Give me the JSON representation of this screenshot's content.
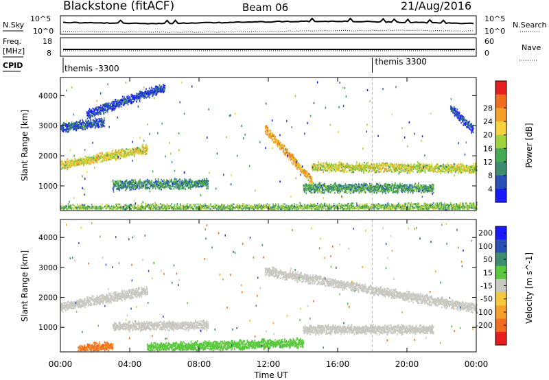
{
  "header": {
    "radar": "Blackstone (fitACF)",
    "beam": "Beam 06",
    "date": "21/Aug/2016"
  },
  "summary_panels": {
    "sky_label": "N.Sky",
    "search_label": "N.Search",
    "noise_ticks": [
      "10^5",
      "10^0"
    ],
    "freq_label_1": "Freq.",
    "freq_label_2": "[MHz]",
    "freq_ticks": [
      "18",
      "8"
    ],
    "nave_label": "Nave",
    "nave_ticks": [
      "60",
      "0"
    ],
    "cpid_label": "CPID",
    "cpid_segments": [
      {
        "label": "themis -3300",
        "start_hour": 0.0
      },
      {
        "label": "themis 3300",
        "start_hour": 18.0
      }
    ]
  },
  "colors": {
    "power_scale": [
      "#1a1aff",
      "#2850b4",
      "#3c8c6e",
      "#46aa50",
      "#a0d23c",
      "#f5d23c",
      "#f5a028",
      "#f06e1e",
      "#e61e1e"
    ],
    "velocity_scale": [
      "#1a1aff",
      "#2850b4",
      "#3c8c6e",
      "#5ac83c",
      "#c8c8c0",
      "#f5c83c",
      "#f5a028",
      "#f06e1e",
      "#e61e1e"
    ],
    "gray": "#c8c8c0"
  },
  "chart_data": [
    {
      "type": "heatmap",
      "panel": "power",
      "xlabel": "",
      "ylabel": "Slant Range [km]",
      "xlim": [
        0,
        24
      ],
      "ylim": [
        180,
        4600
      ],
      "yticks": [
        "1000",
        "2000",
        "3000",
        "4000"
      ],
      "colorbar_label": "Power [dB]",
      "colorbar_ticks": [
        "4",
        "8",
        "12",
        "16",
        "20",
        "24",
        "28"
      ],
      "colorbar_range": [
        0,
        30
      ],
      "bands": [
        {
          "start_hour": 0.0,
          "end_hour": 5.0,
          "range_start_km": 1700,
          "range_end_km": 2250,
          "power_db": 18
        },
        {
          "start_hour": 0.0,
          "end_hour": 2.5,
          "range_start_km": 2950,
          "range_end_km": 3150,
          "power_db": 6
        },
        {
          "start_hour": 1.5,
          "end_hour": 6.0,
          "range_start_km": 3400,
          "range_end_km": 4300,
          "power_db": 5
        },
        {
          "start_hour": 3.0,
          "end_hour": 8.5,
          "range_start_km": 1050,
          "range_end_km": 1100,
          "power_db": 10
        },
        {
          "start_hour": 0.0,
          "end_hour": 24.0,
          "range_start_km": 250,
          "range_end_km": 300,
          "power_db": 14
        },
        {
          "start_hour": 11.8,
          "end_hour": 14.5,
          "range_start_km": 2900,
          "range_end_km": 1200,
          "power_db": 22
        },
        {
          "start_hour": 14.5,
          "end_hour": 24.0,
          "range_start_km": 1650,
          "range_end_km": 1600,
          "power_db": 17
        },
        {
          "start_hour": 14.0,
          "end_hour": 21.5,
          "range_start_km": 950,
          "range_end_km": 950,
          "power_db": 11
        },
        {
          "start_hour": 22.5,
          "end_hour": 23.8,
          "range_start_km": 3600,
          "range_end_km": 2900,
          "power_db": 5
        }
      ]
    },
    {
      "type": "heatmap",
      "panel": "velocity",
      "xlabel": "Time UT",
      "ylabel": "Slant Range [km]",
      "xlim": [
        0,
        24
      ],
      "ylim": [
        180,
        4600
      ],
      "xticks": [
        "00:00",
        "04:00",
        "08:00",
        "12:00",
        "16:00",
        "20:00",
        "00:00"
      ],
      "yticks": [
        "1000",
        "2000",
        "3000",
        "4000"
      ],
      "colorbar_label": "Velocity [m s^-1]",
      "colorbar_ticks": [
        "200",
        "100",
        "50",
        "15",
        "-15",
        "-50",
        "-100",
        "-200"
      ],
      "colorbar_range": [
        -250,
        250
      ],
      "bands": [
        {
          "start_hour": 0.0,
          "end_hour": 5.0,
          "range_start_km": 1700,
          "range_end_km": 2250,
          "velocity_ms": 0
        },
        {
          "start_hour": 3.0,
          "end_hour": 8.5,
          "range_start_km": 1050,
          "range_end_km": 1100,
          "velocity_ms": 0
        },
        {
          "start_hour": 11.8,
          "end_hour": 24.0,
          "range_start_km": 2900,
          "range_end_km": 1650,
          "velocity_ms": 0
        },
        {
          "start_hour": 14.0,
          "end_hour": 21.5,
          "range_start_km": 950,
          "range_end_km": 950,
          "velocity_ms": 0
        },
        {
          "start_hour": 5.0,
          "end_hour": 14.0,
          "range_start_km": 350,
          "range_end_km": 500,
          "velocity_ms": 60
        },
        {
          "start_hour": 1.0,
          "end_hour": 3.0,
          "range_start_km": 300,
          "range_end_km": 400,
          "velocity_ms": -150
        }
      ]
    }
  ]
}
